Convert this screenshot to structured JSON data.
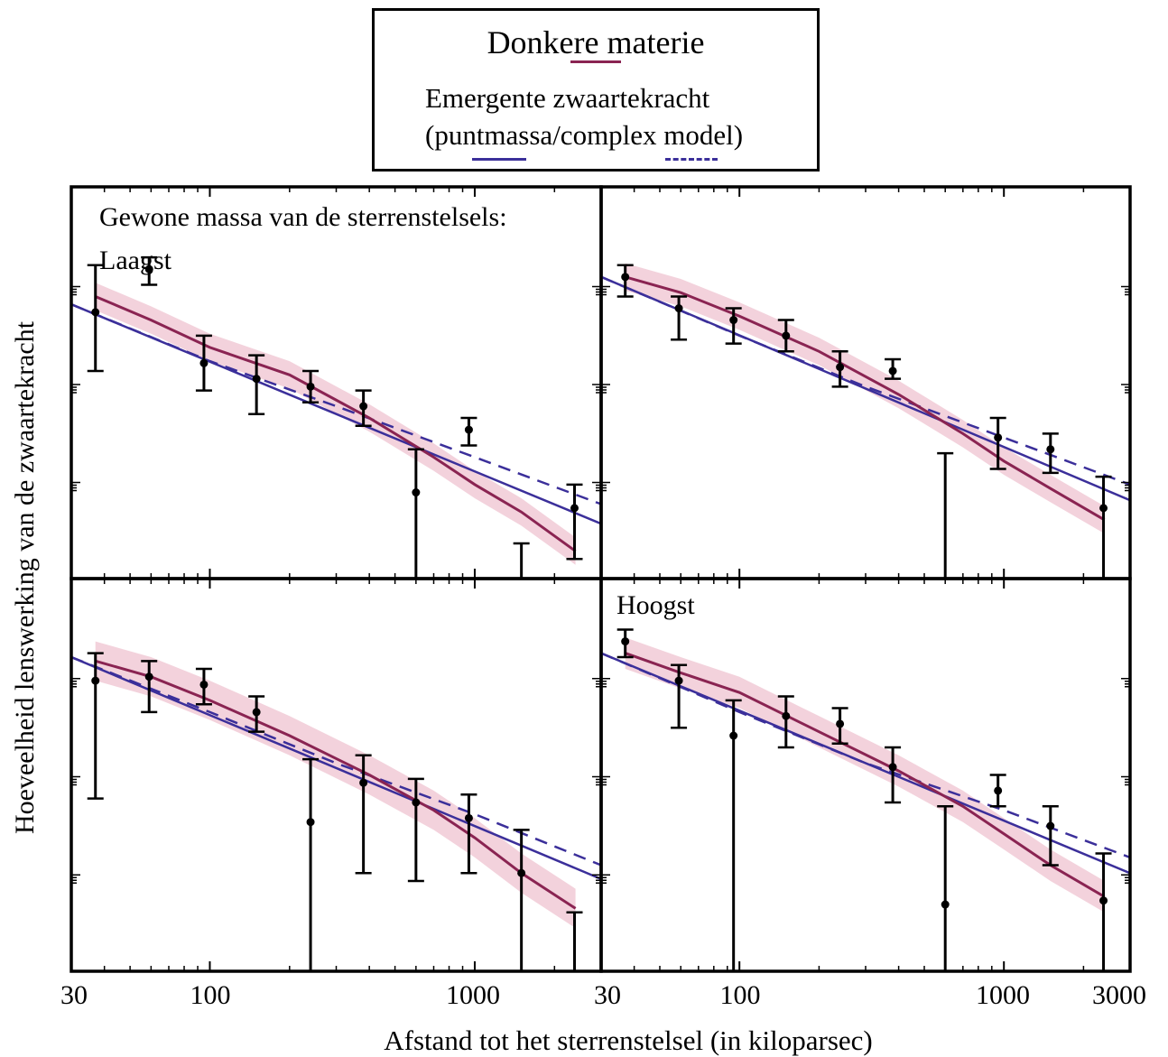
{
  "legend": {
    "dark_matter": "Donkere materie",
    "emergent_line1": "Emergente zwaartekracht",
    "emergent_line2": "(puntmassa/complex model)"
  },
  "colors": {
    "dark_matter": "#8a2452",
    "dark_matter_band": "#f1cad6",
    "emergent": "#3b2f9a",
    "points": "#000000"
  },
  "chart_data": {
    "type": "scatter",
    "title": "",
    "xlabel": "Afstand tot het sterrenstelsel (in kiloparsec)",
    "ylabel": "Hoeveelheid lenswerking van de zwaartekracht",
    "xscale": "log",
    "xlim": [
      30,
      3000
    ],
    "x_ticks": [
      30,
      100,
      1000,
      3000
    ],
    "ylim": [
      0,
      1
    ],
    "y_units": "relative (unlabeled)",
    "grid": false,
    "legend_position": "top-center, above panels",
    "series_names": [
      "Donkere materie",
      "Emergente zwaartekracht (puntmassa)",
      "Emergente zwaartekracht (complex model)"
    ],
    "panels": [
      {
        "labels": [
          "Gewone massa van de sterrenstelsels:",
          "Laagst"
        ],
        "points": [
          {
            "x": 37,
            "y": 0.68,
            "lo": 0.53,
            "hi": 0.8
          },
          {
            "x": 59,
            "y": 0.79,
            "lo": 0.75,
            "hi": 0.82
          },
          {
            "x": 95,
            "y": 0.55,
            "lo": 0.48,
            "hi": 0.62
          },
          {
            "x": 150,
            "y": 0.51,
            "lo": 0.42,
            "hi": 0.57
          },
          {
            "x": 240,
            "y": 0.49,
            "lo": 0.45,
            "hi": 0.53
          },
          {
            "x": 380,
            "y": 0.44,
            "lo": 0.39,
            "hi": 0.48
          },
          {
            "x": 600,
            "y": 0.22,
            "lo": 0.0,
            "hi": 0.33
          },
          {
            "x": 950,
            "y": 0.38,
            "lo": 0.34,
            "hi": 0.41
          },
          {
            "x": 1500,
            "y": null,
            "lo": 0.0,
            "hi": 0.09
          },
          {
            "x": 2380,
            "y": 0.18,
            "lo": 0.05,
            "hi": 0.24
          }
        ],
        "dark_matter": [
          [
            37,
            0.72
          ],
          [
            60,
            0.66
          ],
          [
            100,
            0.59
          ],
          [
            200,
            0.52
          ],
          [
            400,
            0.41
          ],
          [
            700,
            0.31
          ],
          [
            1000,
            0.24
          ],
          [
            1500,
            0.17
          ],
          [
            2400,
            0.07
          ]
        ],
        "band_width": 0.035,
        "emergent_point": [
          [
            30,
            0.7
          ],
          [
            3000,
            0.14
          ]
        ],
        "emergent_complex": [
          [
            30,
            0.7
          ],
          [
            100,
            0.555
          ],
          [
            300,
            0.44
          ],
          [
            1000,
            0.31
          ],
          [
            3000,
            0.19
          ]
        ]
      },
      {
        "labels": [],
        "points": [
          {
            "x": 37,
            "y": 0.77,
            "lo": 0.72,
            "hi": 0.8
          },
          {
            "x": 59,
            "y": 0.69,
            "lo": 0.61,
            "hi": 0.72
          },
          {
            "x": 95,
            "y": 0.66,
            "lo": 0.6,
            "hi": 0.69
          },
          {
            "x": 150,
            "y": 0.62,
            "lo": 0.58,
            "hi": 0.66
          },
          {
            "x": 240,
            "y": 0.54,
            "lo": 0.49,
            "hi": 0.58
          },
          {
            "x": 380,
            "y": 0.53,
            "lo": 0.51,
            "hi": 0.56
          },
          {
            "x": 600,
            "y": null,
            "lo": 0.0,
            "hi": 0.32
          },
          {
            "x": 950,
            "y": 0.36,
            "lo": 0.28,
            "hi": 0.41
          },
          {
            "x": 1500,
            "y": 0.33,
            "lo": 0.27,
            "hi": 0.37
          },
          {
            "x": 2380,
            "y": 0.18,
            "lo": 0.0,
            "hi": 0.26
          }
        ],
        "dark_matter": [
          [
            37,
            0.77
          ],
          [
            60,
            0.73
          ],
          [
            100,
            0.67
          ],
          [
            200,
            0.58
          ],
          [
            400,
            0.47
          ],
          [
            700,
            0.37
          ],
          [
            1000,
            0.3
          ],
          [
            1500,
            0.23
          ],
          [
            2400,
            0.15
          ]
        ],
        "band_width": 0.035,
        "emergent_point": [
          [
            30,
            0.77
          ],
          [
            3000,
            0.2
          ]
        ],
        "emergent_complex": [
          [
            30,
            0.77
          ],
          [
            100,
            0.62
          ],
          [
            300,
            0.49
          ],
          [
            1000,
            0.36
          ],
          [
            3000,
            0.24
          ]
        ]
      },
      {
        "labels": [],
        "points": [
          {
            "x": 37,
            "y": 0.74,
            "lo": 0.44,
            "hi": 0.81
          },
          {
            "x": 59,
            "y": 0.75,
            "lo": 0.66,
            "hi": 0.79
          },
          {
            "x": 95,
            "y": 0.73,
            "lo": 0.68,
            "hi": 0.77
          },
          {
            "x": 150,
            "y": 0.66,
            "lo": 0.61,
            "hi": 0.7
          },
          {
            "x": 240,
            "y": 0.38,
            "lo": 0.0,
            "hi": 0.54
          },
          {
            "x": 380,
            "y": 0.48,
            "lo": 0.25,
            "hi": 0.55
          },
          {
            "x": 600,
            "y": 0.43,
            "lo": 0.23,
            "hi": 0.49
          },
          {
            "x": 950,
            "y": 0.39,
            "lo": 0.25,
            "hi": 0.45
          },
          {
            "x": 1500,
            "y": 0.25,
            "lo": 0.0,
            "hi": 0.36
          },
          {
            "x": 2380,
            "y": null,
            "lo": 0.0,
            "hi": 0.15
          }
        ],
        "dark_matter": [
          [
            37,
            0.79
          ],
          [
            60,
            0.75
          ],
          [
            100,
            0.69
          ],
          [
            200,
            0.6
          ],
          [
            400,
            0.5
          ],
          [
            700,
            0.41
          ],
          [
            1000,
            0.34
          ],
          [
            1500,
            0.25
          ],
          [
            2400,
            0.16
          ]
        ],
        "band_width": 0.05,
        "emergent_point": [
          [
            30,
            0.8
          ],
          [
            3000,
            0.235
          ]
        ],
        "emergent_complex": [
          [
            30,
            0.8
          ],
          [
            100,
            0.66
          ],
          [
            300,
            0.53
          ],
          [
            1000,
            0.4
          ],
          [
            3000,
            0.27
          ]
        ]
      },
      {
        "labels": [
          "Hoogst"
        ],
        "points": [
          {
            "x": 37,
            "y": 0.84,
            "lo": 0.8,
            "hi": 0.87
          },
          {
            "x": 59,
            "y": 0.74,
            "lo": 0.62,
            "hi": 0.78
          },
          {
            "x": 95,
            "y": 0.6,
            "lo": 0.0,
            "hi": 0.69
          },
          {
            "x": 150,
            "y": 0.65,
            "lo": 0.57,
            "hi": 0.7
          },
          {
            "x": 240,
            "y": 0.63,
            "lo": 0.58,
            "hi": 0.67
          },
          {
            "x": 380,
            "y": 0.52,
            "lo": 0.43,
            "hi": 0.57
          },
          {
            "x": 600,
            "y": 0.17,
            "lo": 0.0,
            "hi": 0.42
          },
          {
            "x": 950,
            "y": 0.46,
            "lo": 0.42,
            "hi": 0.5
          },
          {
            "x": 1500,
            "y": 0.37,
            "lo": 0.27,
            "hi": 0.42
          },
          {
            "x": 2380,
            "y": 0.18,
            "lo": 0.0,
            "hi": 0.3
          }
        ],
        "dark_matter": [
          [
            37,
            0.81
          ],
          [
            60,
            0.76
          ],
          [
            100,
            0.71
          ],
          [
            200,
            0.61
          ],
          [
            400,
            0.51
          ],
          [
            700,
            0.42
          ],
          [
            1000,
            0.35
          ],
          [
            1500,
            0.27
          ],
          [
            2400,
            0.19
          ]
        ],
        "band_width": 0.04,
        "emergent_point": [
          [
            30,
            0.81
          ],
          [
            3000,
            0.25
          ]
        ],
        "emergent_complex": [
          [
            30,
            0.81
          ],
          [
            100,
            0.66
          ],
          [
            300,
            0.53
          ],
          [
            1000,
            0.41
          ],
          [
            3000,
            0.29
          ]
        ]
      }
    ]
  },
  "axis_tick_labels": {
    "left_panels": [
      "30",
      "100",
      "1000"
    ],
    "right_panels": [
      "30",
      "100",
      "1000",
      "3000"
    ]
  }
}
